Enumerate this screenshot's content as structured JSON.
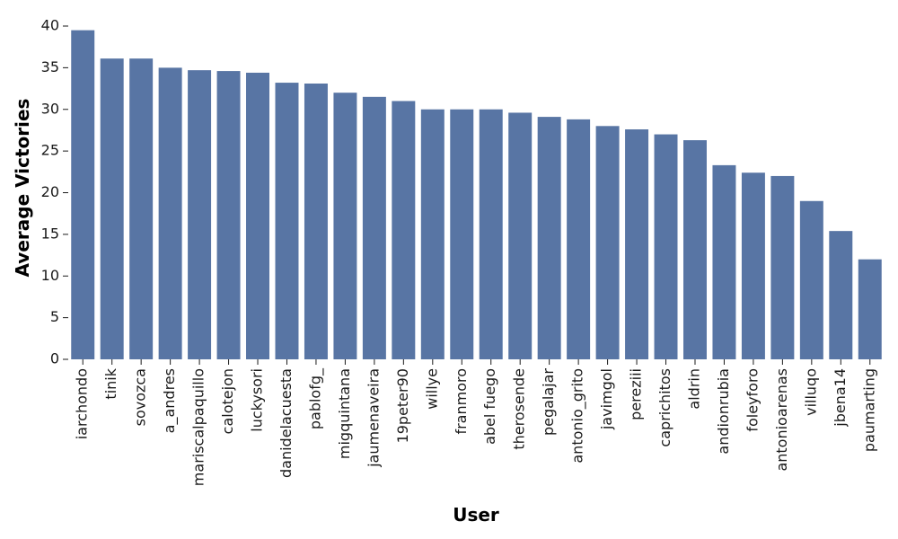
{
  "chart_data": {
    "type": "bar",
    "xlabel": "User",
    "ylabel": "Average Victories",
    "ylim": [
      0,
      40
    ],
    "yticks": [
      0,
      5,
      10,
      15,
      20,
      25,
      30,
      35,
      40
    ],
    "grid": false,
    "bar_color": "#5875a4",
    "categories": [
      "iarchondo",
      "tinik",
      "sovozca",
      "a_andres",
      "mariscalpaquillo",
      "calotejon",
      "luckysori",
      "danidelacuesta",
      "pablofg_",
      "migquintana",
      "jaumenaveira",
      "19peter90",
      "willye",
      "franmoro",
      "abel fuego",
      "therosende",
      "pegalajar",
      "antonio_grito",
      "javimgol",
      "pereziii",
      "caprichitos",
      "aldrin",
      "andionrubia",
      "foleyforo",
      "antonioarenas",
      "villuqo",
      "jbena14",
      "paumarting"
    ],
    "values": [
      39.5,
      36.1,
      36.1,
      35.0,
      34.7,
      34.6,
      34.4,
      33.2,
      33.1,
      32.0,
      31.5,
      31.0,
      30.0,
      30.0,
      30.0,
      29.6,
      29.1,
      28.8,
      28.0,
      27.6,
      27.0,
      26.3,
      23.3,
      22.4,
      22.0,
      19.0,
      15.4,
      12.0
    ]
  }
}
